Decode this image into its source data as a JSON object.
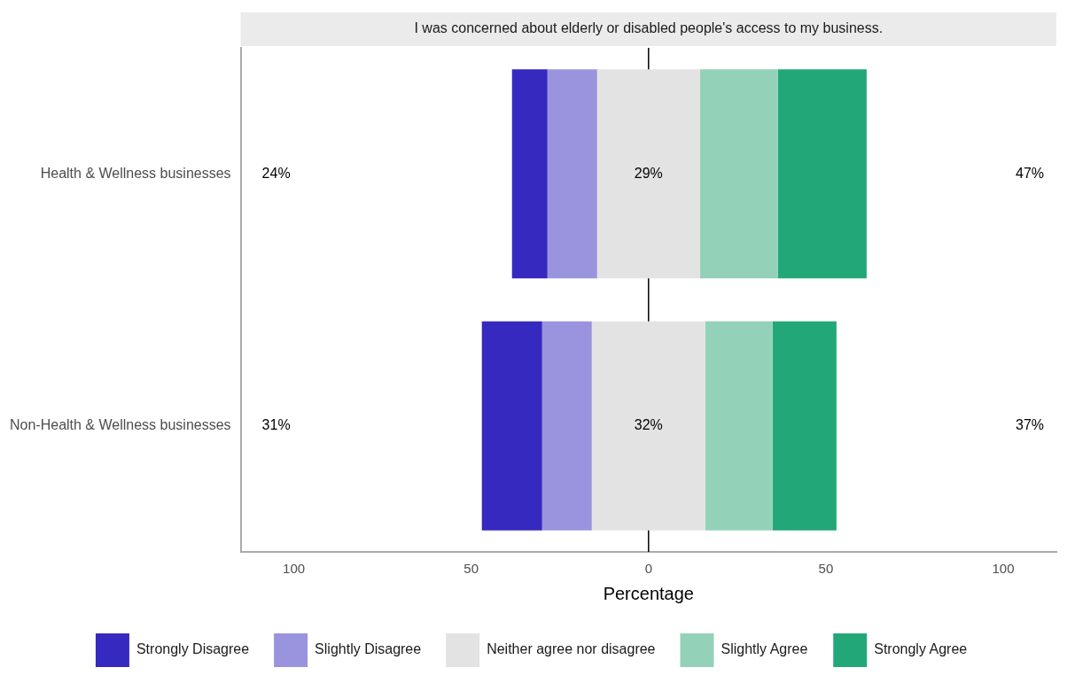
{
  "chart_data": {
    "type": "bar",
    "orientation": "horizontal",
    "title": "I was concerned about elderly or disabled people's access to my business.",
    "categories": [
      "Health & Wellness businesses",
      "Non-Health & Wellness businesses"
    ],
    "series": [
      {
        "name": "Strongly Disagree",
        "color": "#3629bf",
        "base": [
          -38.5,
          -47
        ],
        "values": [
          10,
          17
        ]
      },
      {
        "name": "Slightly Disagree",
        "color": "#9a94de",
        "base": [
          -28.5,
          -30
        ],
        "values": [
          14,
          14
        ]
      },
      {
        "name": "Neither agree nor disagree",
        "color": "#e3e3e3",
        "base": [
          -14.5,
          -16
        ],
        "values": [
          29,
          32
        ]
      },
      {
        "name": "Slightly Agree",
        "color": "#93d2b9",
        "base": [
          14.5,
          16
        ],
        "values": [
          22,
          19
        ]
      },
      {
        "name": "Strongly Agree",
        "color": "#22a878",
        "base": [
          36.5,
          35
        ],
        "values": [
          25,
          18
        ]
      }
    ],
    "xlabel": "Percentage",
    "xlim": [
      -115,
      115
    ],
    "xticks": [
      {
        "value": -100,
        "label": "100"
      },
      {
        "value": -50,
        "label": "50"
      },
      0,
      50,
      100
    ],
    "ref_lines": [
      {
        "axis": "x",
        "value": 0,
        "color": "#000000"
      }
    ],
    "annotations": [
      "24%",
      "29%",
      "47%",
      "31%",
      "32%",
      "37%"
    ],
    "grid": false,
    "legend": "bottom"
  }
}
